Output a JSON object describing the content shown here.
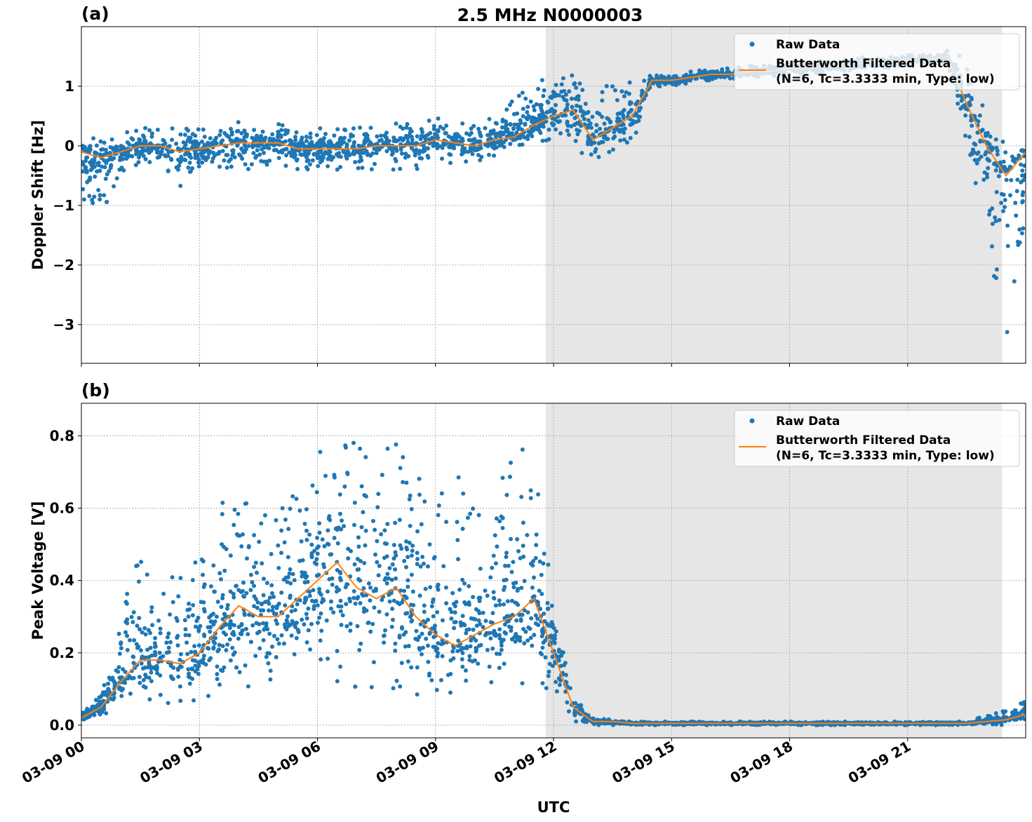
{
  "title": "2.5 MHz N0000003",
  "xlabel": "UTC",
  "x_tick_labels": [
    "03-09 00",
    "03-09 03",
    "03-09 06",
    "03-09 09",
    "03-09 12",
    "03-09 15",
    "03-09 18",
    "03-09 21"
  ],
  "colors": {
    "raw": "#1f77b4",
    "filtered": "#ff7f0e",
    "shaded": "#e6e6e6",
    "grid": "#b0b0b0"
  },
  "chart_data": [
    {
      "type": "scatter+line",
      "panel_label": "(a)",
      "ylabel": "Doppler Shift [Hz]",
      "x_unit": "hours UTC on 03-09",
      "xlim": [
        0,
        24
      ],
      "ylim": [
        -3.65,
        2.0
      ],
      "yticks": [
        1,
        0,
        -1,
        -2,
        -3
      ],
      "ytick_labels": [
        "1",
        "0",
        "−1",
        "−2",
        "−3"
      ],
      "grid": true,
      "shaded_region": [
        11.8,
        23.4
      ],
      "legend": {
        "position": "top-right",
        "raw": "Raw Data",
        "filtered_line1": "Butterworth Filtered Data",
        "filtered_line2": "(N=6, Tc=3.3333 min, Type: low)"
      },
      "x": [
        0,
        0.5,
        1,
        1.5,
        2,
        2.5,
        3,
        3.5,
        4,
        4.5,
        5,
        5.5,
        6,
        6.5,
        7,
        7.5,
        8,
        8.5,
        9,
        9.5,
        10,
        10.5,
        11,
        11.5,
        12,
        12.5,
        13,
        13.5,
        14,
        14.5,
        15,
        15.5,
        16,
        16.5,
        17,
        17.5,
        18,
        18.5,
        19,
        19.5,
        20,
        20.5,
        21,
        21.5,
        22,
        22.5,
        23,
        23.5,
        24
      ],
      "filtered": [
        -0.1,
        -0.2,
        -0.1,
        0.0,
        0.0,
        -0.1,
        -0.05,
        0.0,
        0.05,
        0.05,
        0.05,
        -0.05,
        -0.05,
        -0.05,
        -0.05,
        0.0,
        0.0,
        0.0,
        0.1,
        0.05,
        0.0,
        0.1,
        0.15,
        0.35,
        0.5,
        0.6,
        0.1,
        0.3,
        0.5,
        1.1,
        1.1,
        1.15,
        1.2,
        1.2,
        1.25,
        1.25,
        1.3,
        1.3,
        1.35,
        1.35,
        1.4,
        1.4,
        1.45,
        1.45,
        1.5,
        0.7,
        0.0,
        -0.5,
        -0.1
      ],
      "raw_low": [
        -1.0,
        -1.2,
        -0.5,
        -0.3,
        -0.3,
        -0.7,
        -0.4,
        -0.4,
        -0.4,
        -0.4,
        -0.4,
        -0.4,
        -0.4,
        -0.4,
        -0.4,
        -0.4,
        -0.4,
        -0.4,
        -0.3,
        -0.3,
        -0.3,
        -0.2,
        0.0,
        0.0,
        0.0,
        0.0,
        -0.3,
        -0.1,
        -0.1,
        0.9,
        1.0,
        1.05,
        1.1,
        1.1,
        1.15,
        1.15,
        1.2,
        1.2,
        1.25,
        1.25,
        1.3,
        1.3,
        1.35,
        1.35,
        1.4,
        0.0,
        -1.5,
        -3.3,
        -2.5
      ],
      "raw_high": [
        0.2,
        0.1,
        0.2,
        0.3,
        0.3,
        0.3,
        0.3,
        0.4,
        0.4,
        0.4,
        0.4,
        0.3,
        0.3,
        0.3,
        0.3,
        0.4,
        0.4,
        0.4,
        0.6,
        0.4,
        0.4,
        0.5,
        0.9,
        1.0,
        1.3,
        1.3,
        1.0,
        1.1,
        1.1,
        1.2,
        1.2,
        1.25,
        1.3,
        1.3,
        1.35,
        1.35,
        1.4,
        1.4,
        1.45,
        1.45,
        1.5,
        1.5,
        1.55,
        1.55,
        1.6,
        1.5,
        0.5,
        0.0,
        0.0
      ]
    },
    {
      "type": "scatter+line",
      "panel_label": "(b)",
      "ylabel": "Peak Voltage [V]",
      "x_unit": "hours UTC on 03-09",
      "xlim": [
        0,
        24
      ],
      "ylim": [
        -0.035,
        0.89
      ],
      "yticks": [
        0.0,
        0.2,
        0.4,
        0.6,
        0.8
      ],
      "ytick_labels": [
        "0.0",
        "0.2",
        "0.4",
        "0.6",
        "0.8"
      ],
      "grid": true,
      "shaded_region": [
        11.8,
        23.4
      ],
      "legend": {
        "position": "top-right",
        "raw": "Raw Data",
        "filtered_line1": "Butterworth Filtered Data",
        "filtered_line2": "(N=6, Tc=3.3333 min, Type: low)"
      },
      "x": [
        0,
        0.5,
        1,
        1.5,
        2,
        2.5,
        3,
        3.5,
        4,
        4.5,
        5,
        5.5,
        6,
        6.5,
        7,
        7.5,
        8,
        8.5,
        9,
        9.5,
        10,
        10.5,
        11,
        11.5,
        12,
        12.5,
        13,
        13.5,
        14,
        14.5,
        15,
        15.5,
        16,
        16.5,
        17,
        17.5,
        18,
        18.5,
        19,
        19.5,
        20,
        20.5,
        21,
        21.5,
        22,
        22.5,
        23,
        23.5,
        24
      ],
      "filtered": [
        0.02,
        0.05,
        0.12,
        0.18,
        0.18,
        0.17,
        0.2,
        0.27,
        0.33,
        0.3,
        0.3,
        0.35,
        0.4,
        0.45,
        0.38,
        0.35,
        0.38,
        0.3,
        0.25,
        0.22,
        0.25,
        0.28,
        0.3,
        0.35,
        0.2,
        0.05,
        0.01,
        0.01,
        0.005,
        0.005,
        0.005,
        0.005,
        0.005,
        0.005,
        0.005,
        0.005,
        0.005,
        0.005,
        0.005,
        0.005,
        0.005,
        0.005,
        0.005,
        0.005,
        0.005,
        0.005,
        0.01,
        0.015,
        0.03
      ],
      "raw_low": [
        0.01,
        0.02,
        0.05,
        0.05,
        0.06,
        0.06,
        0.07,
        0.08,
        0.1,
        0.1,
        0.1,
        0.12,
        0.14,
        0.12,
        0.1,
        0.1,
        0.1,
        0.08,
        0.08,
        0.08,
        0.1,
        0.1,
        0.1,
        0.1,
        0.05,
        0.01,
        0.0,
        0.0,
        0.0,
        0.0,
        0.0,
        0.0,
        0.0,
        0.0,
        0.0,
        0.0,
        0.0,
        0.0,
        0.0,
        0.0,
        0.0,
        0.0,
        0.0,
        0.0,
        0.0,
        0.0,
        0.0,
        0.0,
        0.01
      ],
      "raw_high": [
        0.05,
        0.08,
        0.3,
        0.5,
        0.35,
        0.45,
        0.45,
        0.6,
        0.7,
        0.65,
        0.6,
        0.7,
        0.75,
        0.83,
        0.78,
        0.75,
        0.8,
        0.7,
        0.65,
        0.7,
        0.7,
        0.75,
        0.8,
        0.8,
        0.35,
        0.1,
        0.02,
        0.015,
        0.01,
        0.01,
        0.01,
        0.01,
        0.01,
        0.01,
        0.01,
        0.01,
        0.01,
        0.01,
        0.01,
        0.01,
        0.01,
        0.01,
        0.01,
        0.01,
        0.01,
        0.01,
        0.03,
        0.04,
        0.07
      ]
    }
  ]
}
